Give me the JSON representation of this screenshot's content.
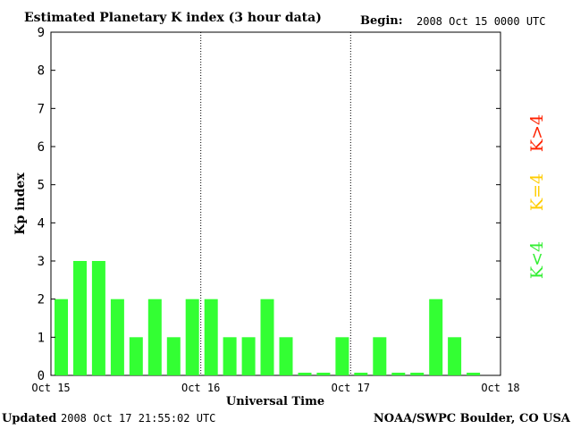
{
  "header": {
    "title": "Estimated Planetary K index (3 hour data)",
    "begin_label": "Begin:",
    "begin_value": "2008 Oct 15 0000 UTC"
  },
  "footer": {
    "updated_label": "Updated",
    "updated_value": "2008 Oct 17 21:55:02 UTC",
    "credit": "NOAA/SWPC Boulder, CO USA"
  },
  "legend": {
    "low": {
      "text": "K<4",
      "color": "#33ee33"
    },
    "mid": {
      "text": "K=4",
      "color": "#ffcc00"
    },
    "high": {
      "text": "K>4",
      "color": "#ff2200"
    }
  },
  "chart_data": {
    "type": "bar",
    "title": "Estimated Planetary K index (3 hour data)",
    "xlabel": "Universal Time",
    "ylabel": "Kp index",
    "ylim": [
      0,
      9
    ],
    "yticks": [
      0,
      1,
      2,
      3,
      4,
      5,
      6,
      7,
      8,
      9
    ],
    "xticks": [
      "Oct 15",
      "Oct 16",
      "Oct 17",
      "Oct 18"
    ],
    "day_dividers": [
      "Oct 16",
      "Oct 17"
    ],
    "interval_hours": 3,
    "bar_color": "#33ff33",
    "categories": [
      "Oct 15 00",
      "Oct 15 03",
      "Oct 15 06",
      "Oct 15 09",
      "Oct 15 12",
      "Oct 15 15",
      "Oct 15 18",
      "Oct 15 21",
      "Oct 16 00",
      "Oct 16 03",
      "Oct 16 06",
      "Oct 16 09",
      "Oct 16 12",
      "Oct 16 15",
      "Oct 16 18",
      "Oct 16 21",
      "Oct 17 00",
      "Oct 17 03",
      "Oct 17 06",
      "Oct 17 09",
      "Oct 17 12",
      "Oct 17 15",
      "Oct 17 18",
      "Oct 17 21"
    ],
    "values": [
      2,
      3,
      3,
      2,
      1,
      2,
      1,
      2,
      2,
      1,
      1,
      2,
      1,
      0.07,
      0.07,
      1,
      0.07,
      1,
      0.07,
      0.07,
      2,
      1,
      0.07,
      null
    ],
    "grid": false
  }
}
